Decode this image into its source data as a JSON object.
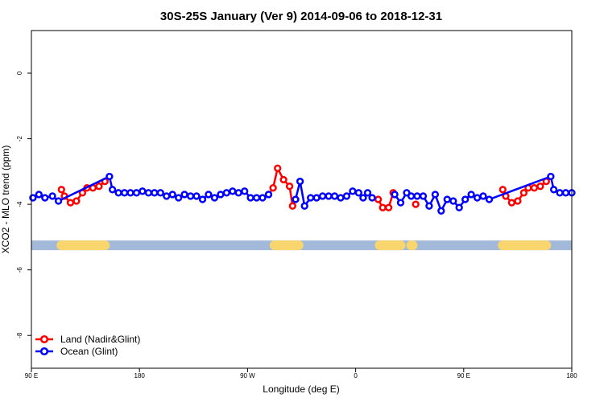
{
  "chart_data": {
    "type": "line",
    "title": "30S-25S January (Ver 9)   2014-09-06 to 2018-12-31",
    "xlabel": "Longitude (deg E)",
    "ylabel": "XCO2 - MLO trend (ppm)",
    "xlim": [
      90,
      450
    ],
    "ylim": [
      -9.0,
      1.3
    ],
    "x_ticks": [
      {
        "value": 90,
        "label": "90 E"
      },
      {
        "value": 162,
        "label": "180"
      },
      {
        "value": 234,
        "label": "90 W"
      },
      {
        "value": 306,
        "label": "0"
      },
      {
        "value": 378,
        "label": "90 E"
      },
      {
        "value": 450,
        "label": "180"
      }
    ],
    "y_ticks": [
      {
        "value": 0,
        "label": "0"
      },
      {
        "value": -2,
        "label": "-2"
      },
      {
        "value": -4,
        "label": "-4"
      },
      {
        "value": -6,
        "label": "-6"
      },
      {
        "value": -8,
        "label": "-8"
      }
    ],
    "series": [
      {
        "name": "Land (Nadir&Glint)",
        "color": "#ff0000",
        "segments": [
          [
            [
              110,
              -3.55
            ],
            [
              112,
              -3.75
            ],
            [
              116,
              -3.95
            ],
            [
              120,
              -3.9
            ],
            [
              124,
              -3.65
            ],
            [
              127,
              -3.5
            ],
            [
              131,
              -3.5
            ],
            [
              135,
              -3.45
            ],
            [
              139,
              -3.3
            ]
          ],
          [
            [
              248,
              -3.7
            ],
            [
              251,
              -3.5
            ],
            [
              254,
              -2.9
            ],
            [
              258,
              -3.25
            ],
            [
              262,
              -3.45
            ],
            [
              264,
              -4.05
            ]
          ],
          [
            [
              321,
              -3.85
            ],
            [
              324,
              -4.1
            ],
            [
              328,
              -4.1
            ],
            [
              331,
              -3.65
            ]
          ],
          [
            [
              346,
              -4.0
            ]
          ],
          [
            [
              404,
              -3.55
            ],
            [
              406,
              -3.75
            ],
            [
              410,
              -3.95
            ],
            [
              414,
              -3.9
            ],
            [
              418,
              -3.65
            ],
            [
              421,
              -3.5
            ],
            [
              425,
              -3.5
            ],
            [
              429,
              -3.45
            ],
            [
              433,
              -3.3
            ]
          ]
        ]
      },
      {
        "name": "Ocean (Glint)",
        "color": "#0000ff",
        "segments": [
          [
            [
              91,
              -3.8
            ],
            [
              95,
              -3.7
            ],
            [
              99,
              -3.8
            ],
            [
              104,
              -3.75
            ],
            [
              108,
              -3.9
            ],
            [
              142,
              -3.15
            ],
            [
              144,
              -3.55
            ],
            [
              148,
              -3.65
            ],
            [
              152,
              -3.65
            ],
            [
              156,
              -3.65
            ],
            [
              160,
              -3.65
            ],
            [
              164,
              -3.6
            ],
            [
              168,
              -3.65
            ],
            [
              172,
              -3.65
            ],
            [
              176,
              -3.65
            ],
            [
              180,
              -3.75
            ],
            [
              184,
              -3.7
            ],
            [
              188,
              -3.8
            ],
            [
              192,
              -3.7
            ],
            [
              196,
              -3.75
            ],
            [
              200,
              -3.75
            ],
            [
              204,
              -3.85
            ],
            [
              208,
              -3.7
            ],
            [
              212,
              -3.8
            ],
            [
              216,
              -3.7
            ],
            [
              220,
              -3.65
            ],
            [
              224,
              -3.6
            ],
            [
              228,
              -3.65
            ],
            [
              232,
              -3.6
            ],
            [
              236,
              -3.8
            ],
            [
              240,
              -3.8
            ],
            [
              244,
              -3.8
            ],
            [
              248,
              -3.7
            ]
          ],
          [
            [
              266,
              -3.85
            ],
            [
              269,
              -3.3
            ],
            [
              272,
              -4.05
            ],
            [
              276,
              -3.8
            ],
            [
              280,
              -3.8
            ],
            [
              284,
              -3.75
            ],
            [
              288,
              -3.75
            ],
            [
              292,
              -3.75
            ],
            [
              296,
              -3.8
            ],
            [
              300,
              -3.75
            ],
            [
              304,
              -3.6
            ],
            [
              308,
              -3.65
            ],
            [
              311,
              -3.8
            ],
            [
              314,
              -3.65
            ],
            [
              317,
              -3.8
            ]
          ],
          [
            [
              332,
              -3.7
            ],
            [
              336,
              -3.95
            ],
            [
              340,
              -3.65
            ],
            [
              343,
              -3.75
            ],
            [
              347,
              -3.75
            ],
            [
              351,
              -3.75
            ],
            [
              355,
              -4.05
            ],
            [
              359,
              -3.7
            ],
            [
              363,
              -4.2
            ],
            [
              367,
              -3.85
            ],
            [
              371,
              -3.9
            ],
            [
              375,
              -4.1
            ],
            [
              379,
              -3.85
            ],
            [
              383,
              -3.7
            ],
            [
              387,
              -3.8
            ],
            [
              391,
              -3.75
            ],
            [
              395,
              -3.85
            ],
            [
              436,
              -3.15
            ],
            [
              438,
              -3.55
            ],
            [
              442,
              -3.65
            ],
            [
              446,
              -3.65
            ],
            [
              450,
              -3.65
            ]
          ]
        ]
      }
    ],
    "surface_bar": {
      "y": -5.25,
      "ocean_color": "#a2b9d9",
      "land_color": "#f8d66d",
      "land_ranges": [
        [
          110,
          139
        ],
        [
          252,
          268
        ],
        [
          322,
          336
        ],
        [
          343,
          344
        ],
        [
          404,
          433
        ]
      ]
    },
    "legend": {
      "position": "bottom-left",
      "entries": [
        {
          "label": "Land (Nadir&Glint)",
          "color": "#ff0000"
        },
        {
          "label": "Ocean (Glint)",
          "color": "#0000ff"
        }
      ]
    },
    "grid": false
  }
}
